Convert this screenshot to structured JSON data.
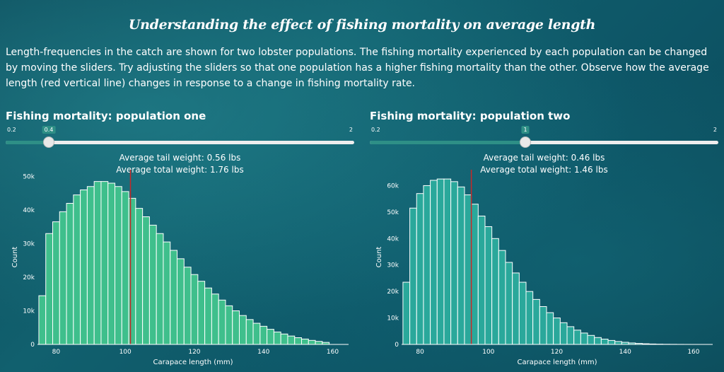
{
  "title": "Understanding the effect of fishing mortality on average length",
  "description": "Length-frequencies in the catch are shown for two lobster populations. The fishing mortality experienced by each population can be changed by moving the sliders. Try adjusting the sliders so that one population has a higher fishing mortality than the other. Observe how the average length (red vertical line) changes in response to a change in fishing mortality rate.",
  "panels": [
    {
      "heading": "Fishing mortality: population one",
      "slider": {
        "min": 0.2,
        "max": 2,
        "value": 0.4,
        "min_label": "0.2",
        "max_label": "2",
        "value_label": "0.4"
      },
      "avg_tail": "Average tail weight: 0.56 lbs",
      "avg_total": "Average total weight: 1.76 lbs"
    },
    {
      "heading": "Fishing mortality: population two",
      "slider": {
        "min": 0.2,
        "max": 2,
        "value": 1,
        "min_label": "0.2",
        "max_label": "2",
        "value_label": "1"
      },
      "avg_tail": "Average tail weight: 0.46 lbs",
      "avg_total": "Average total weight: 1.46 lbs"
    }
  ],
  "colors": {
    "bar_one": "#3fbf8c",
    "bar_two": "#2aa89b",
    "mean_line": "#c62828",
    "slider_fill": "#2e8f86"
  },
  "chart_data": [
    {
      "type": "bar",
      "xlabel": "Carapace length (mm)",
      "ylabel": "Count",
      "xlim": [
        74.6,
        164.6
      ],
      "ylim": [
        0,
        52000
      ],
      "bin_start": 75,
      "bin_width": 2,
      "xticks": [
        80,
        100,
        120,
        140,
        160
      ],
      "yticks": [
        0,
        10000,
        20000,
        30000,
        40000,
        50000
      ],
      "ytick_labels": [
        "0",
        "10k",
        "20k",
        "30k",
        "40k",
        "50k"
      ],
      "values": [
        14500,
        33000,
        36500,
        39500,
        42000,
        44500,
        46000,
        47000,
        48500,
        48500,
        48000,
        47000,
        45500,
        43500,
        40500,
        38000,
        35500,
        33000,
        30500,
        28000,
        25500,
        23000,
        20800,
        18800,
        16800,
        15000,
        13200,
        11500,
        10000,
        8600,
        7400,
        6300,
        5400,
        4500,
        3700,
        3100,
        2500,
        2000,
        1600,
        1200,
        900,
        600
      ],
      "mean": 101.5
    },
    {
      "type": "bar",
      "xlabel": "Carapace length (mm)",
      "ylabel": "Count",
      "xlim": [
        74.6,
        165.6
      ],
      "ylim": [
        0,
        66000
      ],
      "bin_start": 75,
      "bin_width": 2,
      "xticks": [
        80,
        100,
        120,
        140,
        160
      ],
      "yticks": [
        0,
        10000,
        20000,
        30000,
        40000,
        50000,
        60000
      ],
      "ytick_labels": [
        "0",
        "10k",
        "20k",
        "30k",
        "40k",
        "50k",
        "60k"
      ],
      "values": [
        23500,
        51500,
        57000,
        60000,
        62000,
        62500,
        62500,
        61500,
        59500,
        56500,
        53000,
        48500,
        44500,
        40000,
        35500,
        31000,
        27000,
        23500,
        20000,
        17000,
        14300,
        12000,
        10000,
        8200,
        6700,
        5400,
        4300,
        3400,
        2600,
        2000,
        1500,
        1100,
        800,
        550,
        380,
        250,
        160,
        100,
        60,
        40,
        20,
        10
      ],
      "mean": 95
    }
  ]
}
